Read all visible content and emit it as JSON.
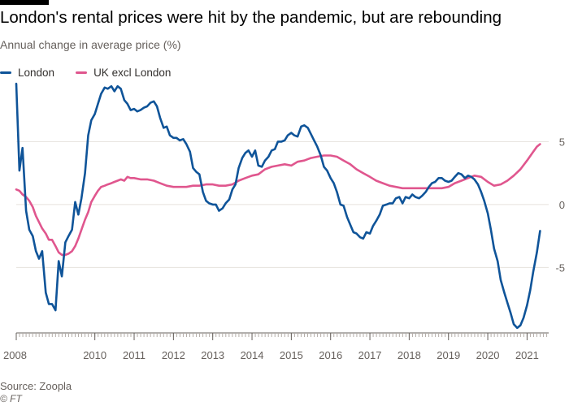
{
  "title": "London's rental prices were hit by the pandemic, but are rebounding",
  "subtitle": "Annual change in average price (%)",
  "source": "Source: Zoopla",
  "credit": "© FT",
  "colors": {
    "london": "#0f5499",
    "uk_excl_london": "#e0568e",
    "grid": "#e6e2dd",
    "axis": "#66605c"
  },
  "chart_data": {
    "type": "line",
    "title": "London's rental prices were hit by the pandemic, but are rebounding",
    "ylabel": "Annual change in average price (%)",
    "xlim": [
      2008.0,
      2021.55
    ],
    "ylim": [
      -10.2,
      9.8
    ],
    "y_ticks": [
      5,
      0,
      -5
    ],
    "y_tick_labels": [
      "5",
      "0",
      "-5"
    ],
    "x_ticks": [
      2008,
      2010,
      2011,
      2012,
      2013,
      2014,
      2015,
      2016,
      2017,
      2018,
      2019,
      2020,
      2021
    ],
    "x_tick_labels": [
      "2008",
      "2010",
      "2011",
      "2012",
      "2013",
      "2014",
      "2015",
      "2016",
      "2017",
      "2018",
      "2019",
      "2020",
      "2021"
    ],
    "grid": true,
    "legend_position": "top-left",
    "series": [
      {
        "name": "London",
        "points": [
          [
            2008.0,
            9.6
          ],
          [
            2008.08,
            2.7
          ],
          [
            2008.16,
            4.5
          ],
          [
            2008.25,
            -0.5
          ],
          [
            2008.33,
            -2.0
          ],
          [
            2008.42,
            -2.5
          ],
          [
            2008.5,
            -3.7
          ],
          [
            2008.58,
            -4.3
          ],
          [
            2008.66,
            -3.7
          ],
          [
            2008.75,
            -7.0
          ],
          [
            2008.83,
            -7.9
          ],
          [
            2008.91,
            -7.9
          ],
          [
            2009.0,
            -8.4
          ],
          [
            2009.08,
            -4.5
          ],
          [
            2009.16,
            -5.7
          ],
          [
            2009.25,
            -3.0
          ],
          [
            2009.33,
            -2.5
          ],
          [
            2009.42,
            -2.0
          ],
          [
            2009.5,
            0.2
          ],
          [
            2009.58,
            -0.8
          ],
          [
            2009.66,
            0.5
          ],
          [
            2009.75,
            2.5
          ],
          [
            2009.83,
            5.5
          ],
          [
            2009.91,
            6.7
          ],
          [
            2010.0,
            7.2
          ],
          [
            2010.08,
            8.0
          ],
          [
            2010.16,
            8.8
          ],
          [
            2010.25,
            9.3
          ],
          [
            2010.33,
            9.2
          ],
          [
            2010.42,
            9.4
          ],
          [
            2010.5,
            9.0
          ],
          [
            2010.58,
            9.4
          ],
          [
            2010.66,
            9.2
          ],
          [
            2010.75,
            8.3
          ],
          [
            2010.83,
            8.0
          ],
          [
            2010.91,
            7.5
          ],
          [
            2011.0,
            7.6
          ],
          [
            2011.08,
            7.4
          ],
          [
            2011.16,
            7.5
          ],
          [
            2011.25,
            7.7
          ],
          [
            2011.33,
            7.8
          ],
          [
            2011.42,
            8.1
          ],
          [
            2011.5,
            8.2
          ],
          [
            2011.58,
            7.8
          ],
          [
            2011.66,
            6.9
          ],
          [
            2011.75,
            6.1
          ],
          [
            2011.83,
            6.2
          ],
          [
            2011.91,
            5.5
          ],
          [
            2012.0,
            5.3
          ],
          [
            2012.08,
            5.3
          ],
          [
            2012.16,
            5.1
          ],
          [
            2012.25,
            5.2
          ],
          [
            2012.33,
            4.8
          ],
          [
            2012.42,
            4.2
          ],
          [
            2012.5,
            2.9
          ],
          [
            2012.58,
            2.6
          ],
          [
            2012.66,
            2.4
          ],
          [
            2012.75,
            1.0
          ],
          [
            2012.83,
            0.3
          ],
          [
            2012.91,
            0.1
          ],
          [
            2013.0,
            0.0
          ],
          [
            2013.08,
            0.0
          ],
          [
            2013.16,
            -0.5
          ],
          [
            2013.25,
            -0.3
          ],
          [
            2013.33,
            0.1
          ],
          [
            2013.42,
            0.4
          ],
          [
            2013.5,
            1.2
          ],
          [
            2013.58,
            1.6
          ],
          [
            2013.66,
            2.9
          ],
          [
            2013.75,
            3.7
          ],
          [
            2013.83,
            4.1
          ],
          [
            2013.91,
            4.3
          ],
          [
            2014.0,
            3.8
          ],
          [
            2014.08,
            4.3
          ],
          [
            2014.16,
            3.1
          ],
          [
            2014.25,
            3.0
          ],
          [
            2014.33,
            3.5
          ],
          [
            2014.42,
            3.8
          ],
          [
            2014.5,
            4.3
          ],
          [
            2014.58,
            4.4
          ],
          [
            2014.66,
            5.0
          ],
          [
            2014.75,
            5.0
          ],
          [
            2014.83,
            5.1
          ],
          [
            2014.91,
            5.5
          ],
          [
            2015.0,
            5.7
          ],
          [
            2015.08,
            5.5
          ],
          [
            2015.16,
            5.4
          ],
          [
            2015.25,
            6.2
          ],
          [
            2015.33,
            6.3
          ],
          [
            2015.42,
            6.1
          ],
          [
            2015.5,
            5.6
          ],
          [
            2015.58,
            5.1
          ],
          [
            2015.66,
            4.6
          ],
          [
            2015.75,
            3.9
          ],
          [
            2015.83,
            3.0
          ],
          [
            2015.91,
            2.7
          ],
          [
            2016.0,
            2.1
          ],
          [
            2016.08,
            1.7
          ],
          [
            2016.16,
            1.0
          ],
          [
            2016.25,
            0.0
          ],
          [
            2016.33,
            -0.1
          ],
          [
            2016.42,
            -1.0
          ],
          [
            2016.5,
            -1.6
          ],
          [
            2016.58,
            -2.2
          ],
          [
            2016.66,
            -2.3
          ],
          [
            2016.75,
            -2.6
          ],
          [
            2016.83,
            -2.7
          ],
          [
            2016.91,
            -2.2
          ],
          [
            2017.0,
            -2.3
          ],
          [
            2017.08,
            -1.7
          ],
          [
            2017.16,
            -1.3
          ],
          [
            2017.25,
            -0.8
          ],
          [
            2017.33,
            -0.1
          ],
          [
            2017.42,
            0.0
          ],
          [
            2017.5,
            0.1
          ],
          [
            2017.58,
            0.1
          ],
          [
            2017.66,
            0.5
          ],
          [
            2017.75,
            0.6
          ],
          [
            2017.83,
            0.1
          ],
          [
            2017.91,
            0.6
          ],
          [
            2018.0,
            0.5
          ],
          [
            2018.08,
            0.8
          ],
          [
            2018.16,
            0.6
          ],
          [
            2018.25,
            0.5
          ],
          [
            2018.33,
            0.7
          ],
          [
            2018.42,
            1.0
          ],
          [
            2018.5,
            1.4
          ],
          [
            2018.58,
            1.7
          ],
          [
            2018.66,
            1.8
          ],
          [
            2018.75,
            2.1
          ],
          [
            2018.83,
            2.1
          ],
          [
            2018.91,
            1.9
          ],
          [
            2019.0,
            1.8
          ],
          [
            2019.08,
            1.9
          ],
          [
            2019.16,
            2.2
          ],
          [
            2019.25,
            2.5
          ],
          [
            2019.33,
            2.4
          ],
          [
            2019.42,
            2.1
          ],
          [
            2019.5,
            2.3
          ],
          [
            2019.58,
            2.2
          ],
          [
            2019.66,
            2.0
          ],
          [
            2019.75,
            1.6
          ],
          [
            2019.83,
            1.0
          ],
          [
            2019.91,
            0.3
          ],
          [
            2020.0,
            -0.7
          ],
          [
            2020.08,
            -2.0
          ],
          [
            2020.16,
            -3.5
          ],
          [
            2020.25,
            -4.5
          ],
          [
            2020.33,
            -6.0
          ],
          [
            2020.42,
            -7.0
          ],
          [
            2020.5,
            -7.8
          ],
          [
            2020.58,
            -8.6
          ],
          [
            2020.66,
            -9.5
          ],
          [
            2020.75,
            -9.8
          ],
          [
            2020.83,
            -9.6
          ],
          [
            2020.91,
            -9.0
          ],
          [
            2021.0,
            -8.0
          ],
          [
            2021.08,
            -6.8
          ],
          [
            2021.16,
            -5.3
          ],
          [
            2021.25,
            -3.8
          ],
          [
            2021.33,
            -2.1
          ]
        ]
      },
      {
        "name": "UK excl London",
        "points": [
          [
            2008.0,
            1.2
          ],
          [
            2008.08,
            1.1
          ],
          [
            2008.16,
            0.8
          ],
          [
            2008.25,
            0.6
          ],
          [
            2008.33,
            0.3
          ],
          [
            2008.42,
            -0.2
          ],
          [
            2008.5,
            -0.9
          ],
          [
            2008.58,
            -1.4
          ],
          [
            2008.66,
            -1.9
          ],
          [
            2008.75,
            -2.3
          ],
          [
            2008.83,
            -2.8
          ],
          [
            2008.91,
            -2.8
          ],
          [
            2009.0,
            -3.3
          ],
          [
            2009.08,
            -3.8
          ],
          [
            2009.16,
            -4.0
          ],
          [
            2009.25,
            -4.0
          ],
          [
            2009.33,
            -3.9
          ],
          [
            2009.42,
            -3.7
          ],
          [
            2009.5,
            -3.3
          ],
          [
            2009.58,
            -2.7
          ],
          [
            2009.66,
            -2.0
          ],
          [
            2009.75,
            -1.2
          ],
          [
            2009.83,
            -0.6
          ],
          [
            2009.91,
            0.2
          ],
          [
            2010.0,
            0.7
          ],
          [
            2010.08,
            1.1
          ],
          [
            2010.16,
            1.4
          ],
          [
            2010.25,
            1.5
          ],
          [
            2010.33,
            1.6
          ],
          [
            2010.42,
            1.7
          ],
          [
            2010.5,
            1.8
          ],
          [
            2010.58,
            1.9
          ],
          [
            2010.66,
            2.0
          ],
          [
            2010.75,
            1.9
          ],
          [
            2010.83,
            2.2
          ],
          [
            2010.91,
            2.1
          ],
          [
            2011.0,
            2.1
          ],
          [
            2011.16,
            2.0
          ],
          [
            2011.33,
            2.0
          ],
          [
            2011.5,
            1.9
          ],
          [
            2011.66,
            1.7
          ],
          [
            2011.83,
            1.5
          ],
          [
            2012.0,
            1.4
          ],
          [
            2012.16,
            1.4
          ],
          [
            2012.33,
            1.4
          ],
          [
            2012.5,
            1.5
          ],
          [
            2012.66,
            1.5
          ],
          [
            2012.83,
            1.6
          ],
          [
            2013.0,
            1.6
          ],
          [
            2013.16,
            1.5
          ],
          [
            2013.33,
            1.5
          ],
          [
            2013.5,
            1.6
          ],
          [
            2013.66,
            1.9
          ],
          [
            2013.83,
            2.1
          ],
          [
            2014.0,
            2.3
          ],
          [
            2014.16,
            2.4
          ],
          [
            2014.33,
            2.8
          ],
          [
            2014.5,
            3.0
          ],
          [
            2014.66,
            3.1
          ],
          [
            2014.83,
            3.2
          ],
          [
            2015.0,
            3.1
          ],
          [
            2015.16,
            3.4
          ],
          [
            2015.33,
            3.5
          ],
          [
            2015.5,
            3.7
          ],
          [
            2015.66,
            3.8
          ],
          [
            2015.83,
            3.9
          ],
          [
            2016.0,
            3.9
          ],
          [
            2016.16,
            3.8
          ],
          [
            2016.33,
            3.5
          ],
          [
            2016.5,
            3.2
          ],
          [
            2016.66,
            2.8
          ],
          [
            2016.83,
            2.5
          ],
          [
            2017.0,
            2.2
          ],
          [
            2017.16,
            1.9
          ],
          [
            2017.33,
            1.7
          ],
          [
            2017.5,
            1.5
          ],
          [
            2017.66,
            1.4
          ],
          [
            2017.83,
            1.3
          ],
          [
            2018.0,
            1.3
          ],
          [
            2018.16,
            1.3
          ],
          [
            2018.33,
            1.3
          ],
          [
            2018.5,
            1.3
          ],
          [
            2018.66,
            1.3
          ],
          [
            2018.83,
            1.3
          ],
          [
            2019.0,
            1.4
          ],
          [
            2019.16,
            1.7
          ],
          [
            2019.33,
            1.9
          ],
          [
            2019.5,
            2.1
          ],
          [
            2019.66,
            2.3
          ],
          [
            2019.83,
            2.2
          ],
          [
            2020.0,
            1.8
          ],
          [
            2020.16,
            1.5
          ],
          [
            2020.33,
            1.6
          ],
          [
            2020.5,
            1.9
          ],
          [
            2020.66,
            2.3
          ],
          [
            2020.83,
            2.8
          ],
          [
            2021.0,
            3.5
          ],
          [
            2021.16,
            4.2
          ],
          [
            2021.25,
            4.6
          ],
          [
            2021.33,
            4.8
          ]
        ]
      }
    ]
  }
}
